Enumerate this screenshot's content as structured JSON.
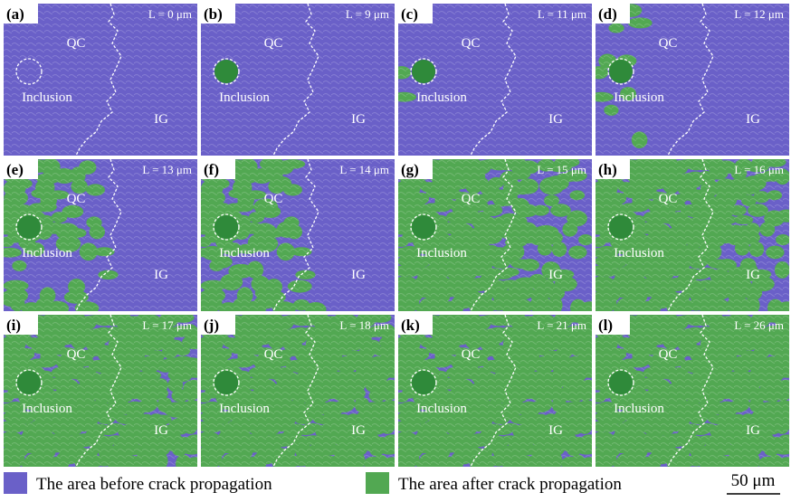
{
  "panels": [
    {
      "label": "(a)",
      "length": "L = 0 μm",
      "regions": [
        "QC",
        "Inclusion",
        "IG"
      ]
    },
    {
      "label": "(b)",
      "length": "L = 9 μm",
      "regions": [
        "QC",
        "Inclusion",
        "IG"
      ]
    },
    {
      "label": "(c)",
      "length": "L = 11 μm",
      "regions": [
        "QC",
        "Inclusion",
        "IG"
      ]
    },
    {
      "label": "(d)",
      "length": "L = 12 μm",
      "regions": [
        "QC",
        "Inclusion",
        "IG"
      ]
    },
    {
      "label": "(e)",
      "length": "L = 13 μm",
      "regions": [
        "QC",
        "Inclusion",
        "IG"
      ]
    },
    {
      "label": "(f)",
      "length": "L = 14 μm",
      "regions": [
        "QC",
        "Inclusion",
        "IG"
      ]
    },
    {
      "label": "(g)",
      "length": "L = 15 μm",
      "regions": [
        "QC",
        "Inclusion",
        "IG"
      ]
    },
    {
      "label": "(h)",
      "length": "L = 16 μm",
      "regions": [
        "QC",
        "Inclusion",
        "IG"
      ]
    },
    {
      "label": "(i)",
      "length": "L = 17 μm",
      "regions": [
        "QC",
        "Inclusion",
        "IG"
      ]
    },
    {
      "label": "(j)",
      "length": "L = 18 μm",
      "regions": [
        "QC",
        "Inclusion",
        "IG"
      ]
    },
    {
      "label": "(k)",
      "length": "L = 21 μm",
      "regions": [
        "QC",
        "Inclusion",
        "IG"
      ]
    },
    {
      "label": "(l)",
      "length": "L = 26 μm",
      "regions": [
        "QC",
        "Inclusion",
        "IG"
      ]
    }
  ],
  "legend": [
    {
      "label": "The area before crack propagation",
      "color": "#6a60c8"
    },
    {
      "label": "The area after crack propagation",
      "color": "#52a852"
    }
  ],
  "scale_bar": "50 μm"
}
